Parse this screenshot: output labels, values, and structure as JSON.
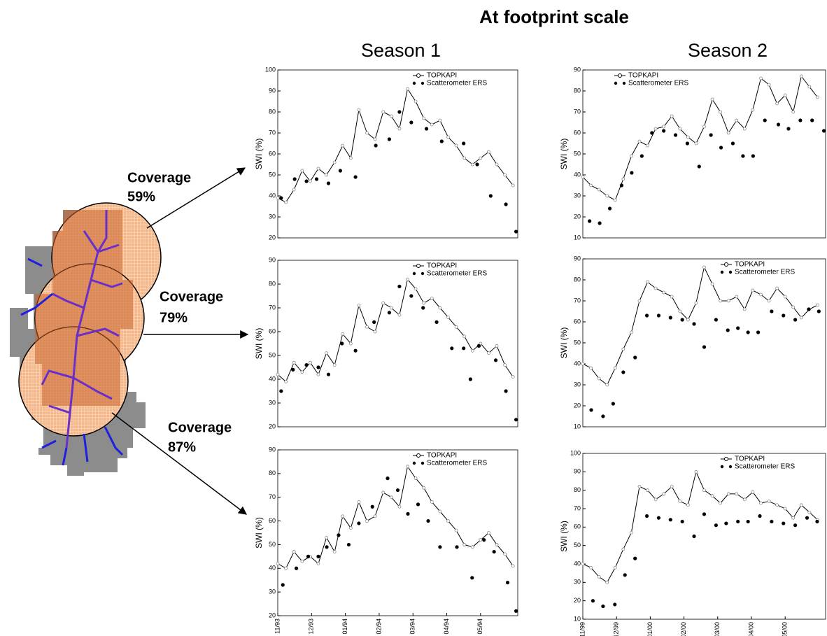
{
  "header": {
    "title": "At footprint scale",
    "seasons": [
      "Season 1",
      "Season 2"
    ]
  },
  "map": {
    "labels": [
      {
        "title": "Coverage",
        "value": "59%"
      },
      {
        "title": "Coverage",
        "value": "79%"
      },
      {
        "title": "Coverage",
        "value": "87%"
      }
    ]
  },
  "chart_data": [
    {
      "type": "line",
      "ylabel": "SWI (%)",
      "xlim": [
        0,
        7.1
      ],
      "ylim": [
        20,
        100
      ],
      "yticks": [
        20,
        30,
        40,
        50,
        60,
        70,
        80,
        90,
        100
      ],
      "legend": "upper right",
      "series": [
        {
          "name": "TOPKAPI",
          "color": "#000000",
          "marker": "o",
          "linestyle": "-",
          "x": [
            0,
            0.24,
            0.48,
            0.72,
            0.96,
            1.2,
            1.44,
            1.68,
            1.92,
            2.16,
            2.4,
            2.64,
            2.88,
            3.12,
            3.36,
            3.6,
            3.84,
            4.08,
            4.32,
            4.56,
            4.8,
            5.04,
            5.28,
            5.52,
            5.76,
            6.0,
            6.24,
            6.48,
            6.72,
            6.96
          ],
          "values": [
            39,
            37,
            43,
            52,
            47,
            53,
            50,
            56,
            64,
            58,
            81,
            70,
            67,
            80,
            78,
            72,
            91,
            85,
            77,
            74,
            76,
            68,
            64,
            58,
            55,
            58,
            61,
            55,
            50,
            45
          ]
        },
        {
          "name": "Scatterometer ERS",
          "color": "#000000",
          "marker": ".",
          "linestyle": "none",
          "x": [
            0.1,
            0.5,
            0.85,
            1.15,
            1.5,
            1.85,
            2.3,
            2.9,
            3.3,
            3.6,
            3.95,
            4.4,
            4.85,
            5.5,
            5.9,
            6.3,
            6.75,
            7.05
          ],
          "values": [
            39,
            48,
            47,
            48,
            46,
            52,
            49,
            64,
            67,
            80,
            75,
            72,
            66,
            65,
            55,
            40,
            36,
            23
          ]
        }
      ]
    },
    {
      "type": "line",
      "ylabel": "SWI (%)",
      "xlim": [
        0,
        7.1
      ],
      "ylim": [
        20,
        90
      ],
      "yticks": [
        20,
        30,
        40,
        50,
        60,
        70,
        80,
        90
      ],
      "legend": "upper right",
      "series": [
        {
          "name": "TOPKAPI",
          "color": "#000000",
          "marker": "o",
          "linestyle": "-",
          "x": [
            0,
            0.24,
            0.48,
            0.72,
            0.96,
            1.2,
            1.44,
            1.68,
            1.92,
            2.16,
            2.4,
            2.64,
            2.88,
            3.12,
            3.36,
            3.6,
            3.84,
            4.08,
            4.32,
            4.56,
            4.8,
            5.04,
            5.28,
            5.52,
            5.76,
            6.0,
            6.24,
            6.48,
            6.72,
            6.96
          ],
          "values": [
            42,
            39,
            47,
            43,
            47,
            42,
            51,
            46,
            59,
            55,
            71,
            62,
            60,
            72,
            70,
            67,
            82,
            78,
            72,
            74,
            70,
            66,
            62,
            58,
            52,
            55,
            51,
            54,
            46,
            41
          ]
        },
        {
          "name": "Scatterometer ERS",
          "color": "#000000",
          "marker": ".",
          "linestyle": "none",
          "x": [
            0.1,
            0.45,
            0.85,
            1.2,
            1.5,
            1.9,
            2.3,
            2.85,
            3.3,
            3.6,
            3.95,
            4.3,
            4.7,
            5.15,
            5.5,
            5.7,
            5.95,
            6.45,
            6.75,
            7.05
          ],
          "values": [
            35,
            44,
            46,
            45,
            42,
            55,
            52,
            64,
            68,
            79,
            75,
            70,
            64,
            53,
            53,
            40,
            54,
            48,
            35,
            23
          ]
        }
      ]
    },
    {
      "type": "line",
      "ylabel": "SWI (%)",
      "xlim": [
        0,
        7.1
      ],
      "ylim": [
        20,
        90
      ],
      "yticks": [
        20,
        30,
        40,
        50,
        60,
        70,
        80,
        90
      ],
      "legend": "upper right",
      "xticks": [
        {
          "value": 0,
          "label": "11/93"
        },
        {
          "value": 1,
          "label": "12/93"
        },
        {
          "value": 2,
          "label": "01/94"
        },
        {
          "value": 3,
          "label": "02/94"
        },
        {
          "value": 4,
          "label": "03/94"
        },
        {
          "value": 5,
          "label": "04/94"
        },
        {
          "value": 6,
          "label": "05/94"
        }
      ],
      "series": [
        {
          "name": "TOPKAPI",
          "color": "#000000",
          "marker": "o",
          "linestyle": "-",
          "x": [
            0,
            0.24,
            0.48,
            0.72,
            0.96,
            1.2,
            1.44,
            1.68,
            1.92,
            2.16,
            2.4,
            2.64,
            2.88,
            3.12,
            3.36,
            3.6,
            3.84,
            4.08,
            4.32,
            4.56,
            4.8,
            5.04,
            5.28,
            5.52,
            5.76,
            6.0,
            6.24,
            6.48,
            6.72,
            6.96
          ],
          "values": [
            42,
            40,
            47,
            43,
            45,
            42,
            53,
            47,
            62,
            57,
            68,
            60,
            62,
            72,
            70,
            66,
            83,
            78,
            74,
            68,
            64,
            60,
            56,
            50,
            49,
            52,
            55,
            50,
            46,
            41
          ]
        },
        {
          "name": "Scatterometer ERS",
          "color": "#000000",
          "marker": ".",
          "linestyle": "none",
          "x": [
            0.15,
            0.55,
            0.9,
            1.2,
            1.45,
            1.8,
            2.1,
            2.4,
            2.8,
            3.25,
            3.55,
            3.85,
            4.15,
            4.45,
            4.8,
            5.3,
            5.75,
            6.1,
            6.4,
            6.8,
            7.05
          ],
          "values": [
            33,
            40,
            45,
            45,
            49,
            54,
            50,
            59,
            66,
            78,
            73,
            63,
            67,
            60,
            49,
            49,
            36,
            52,
            47,
            34,
            22
          ]
        }
      ]
    },
    {
      "type": "line",
      "ylabel": "SWI (%)",
      "xlim": [
        0,
        7.2
      ],
      "ylim": [
        10,
        90
      ],
      "yticks": [
        10,
        20,
        30,
        40,
        50,
        60,
        70,
        80,
        90
      ],
      "legend": "upper left",
      "series": [
        {
          "name": "TOPKAPI",
          "color": "#000000",
          "marker": "o",
          "linestyle": "-",
          "x": [
            0,
            0.24,
            0.48,
            0.72,
            0.96,
            1.2,
            1.44,
            1.68,
            1.92,
            2.16,
            2.4,
            2.64,
            2.88,
            3.12,
            3.36,
            3.6,
            3.84,
            4.08,
            4.32,
            4.56,
            4.8,
            5.04,
            5.28,
            5.52,
            5.76,
            6.0,
            6.24,
            6.48,
            6.72,
            6.96
          ],
          "values": [
            39,
            35,
            33,
            30,
            28,
            38,
            49,
            56,
            54,
            62,
            63,
            68,
            62,
            58,
            55,
            63,
            76,
            70,
            60,
            66,
            62,
            71,
            86,
            83,
            74,
            78,
            70,
            87,
            82,
            77
          ]
        },
        {
          "name": "Scatterometer ERS",
          "color": "#000000",
          "marker": ".",
          "linestyle": "none",
          "x": [
            0.2,
            0.5,
            0.8,
            1.15,
            1.45,
            1.75,
            2.05,
            2.4,
            2.75,
            3.1,
            3.45,
            3.8,
            4.1,
            4.45,
            4.75,
            5.05,
            5.4,
            5.8,
            6.1,
            6.45,
            6.8,
            7.15
          ],
          "values": [
            18,
            17,
            24,
            35,
            41,
            49,
            60,
            61,
            59,
            55,
            44,
            59,
            53,
            55,
            49,
            49,
            66,
            64,
            62,
            66,
            66,
            61
          ]
        }
      ]
    },
    {
      "type": "line",
      "ylabel": "SWI (%)",
      "xlim": [
        0,
        7.2
      ],
      "ylim": [
        10,
        90
      ],
      "yticks": [
        10,
        20,
        30,
        40,
        50,
        60,
        70,
        80,
        90
      ],
      "legend": "upper right",
      "series": [
        {
          "name": "TOPKAPI",
          "color": "#000000",
          "marker": "o",
          "linestyle": "-",
          "x": [
            0,
            0.24,
            0.48,
            0.72,
            0.96,
            1.2,
            1.44,
            1.68,
            1.92,
            2.16,
            2.4,
            2.64,
            2.88,
            3.12,
            3.36,
            3.6,
            3.84,
            4.08,
            4.32,
            4.56,
            4.8,
            5.04,
            5.28,
            5.52,
            5.76,
            6.0,
            6.24,
            6.48,
            6.72,
            6.96
          ],
          "values": [
            40,
            38,
            33,
            30,
            38,
            47,
            55,
            70,
            79,
            76,
            74,
            72,
            65,
            61,
            69,
            86,
            78,
            70,
            70,
            72,
            66,
            75,
            73,
            70,
            76,
            72,
            67,
            62,
            66,
            68
          ]
        },
        {
          "name": "Scatterometer ERS",
          "color": "#000000",
          "marker": ".",
          "linestyle": "none",
          "x": [
            0.25,
            0.6,
            0.9,
            1.2,
            1.55,
            1.9,
            2.25,
            2.6,
            2.95,
            3.3,
            3.6,
            3.95,
            4.3,
            4.6,
            4.9,
            5.2,
            5.6,
            5.95,
            6.3,
            6.7,
            7.0
          ],
          "values": [
            18,
            15,
            21,
            36,
            43,
            63,
            63,
            62,
            61,
            59,
            48,
            61,
            56,
            57,
            55,
            55,
            65,
            63,
            61,
            66,
            65
          ]
        }
      ]
    },
    {
      "type": "line",
      "ylabel": "SWI (%)",
      "xlim": [
        0,
        7.2
      ],
      "ylim": [
        10,
        100
      ],
      "yticks": [
        10,
        20,
        30,
        40,
        50,
        60,
        70,
        80,
        90,
        100
      ],
      "legend": "upper right",
      "xticks": [
        {
          "value": 0,
          "label": "11/99"
        },
        {
          "value": 1,
          "label": "12/99"
        },
        {
          "value": 2,
          "label": "01/00"
        },
        {
          "value": 3,
          "label": "02/00"
        },
        {
          "value": 4,
          "label": "03/00"
        },
        {
          "value": 5,
          "label": "04/00"
        },
        {
          "value": 6,
          "label": "05/00"
        }
      ],
      "series": [
        {
          "name": "TOPKAPI",
          "color": "#000000",
          "marker": "o",
          "linestyle": "-",
          "x": [
            0,
            0.24,
            0.48,
            0.72,
            0.96,
            1.2,
            1.44,
            1.68,
            1.92,
            2.16,
            2.4,
            2.64,
            2.88,
            3.12,
            3.36,
            3.6,
            3.84,
            4.08,
            4.32,
            4.56,
            4.8,
            5.04,
            5.28,
            5.52,
            5.76,
            6.0,
            6.24,
            6.48,
            6.72,
            6.96
          ],
          "values": [
            40,
            38,
            33,
            30,
            38,
            48,
            57,
            82,
            80,
            75,
            78,
            82,
            74,
            72,
            90,
            80,
            77,
            73,
            78,
            78,
            75,
            79,
            73,
            74,
            72,
            70,
            65,
            72,
            68,
            64
          ]
        },
        {
          "name": "Scatterometer ERS",
          "color": "#000000",
          "marker": ".",
          "linestyle": "none",
          "x": [
            0.3,
            0.6,
            0.95,
            1.25,
            1.55,
            1.9,
            2.25,
            2.6,
            2.95,
            3.3,
            3.6,
            3.95,
            4.25,
            4.6,
            4.9,
            5.25,
            5.6,
            5.95,
            6.3,
            6.65,
            6.95
          ],
          "values": [
            20,
            17,
            18,
            34,
            43,
            66,
            65,
            64,
            63,
            55,
            67,
            61,
            62,
            63,
            63,
            66,
            63,
            62,
            61,
            65,
            63
          ]
        }
      ]
    }
  ]
}
